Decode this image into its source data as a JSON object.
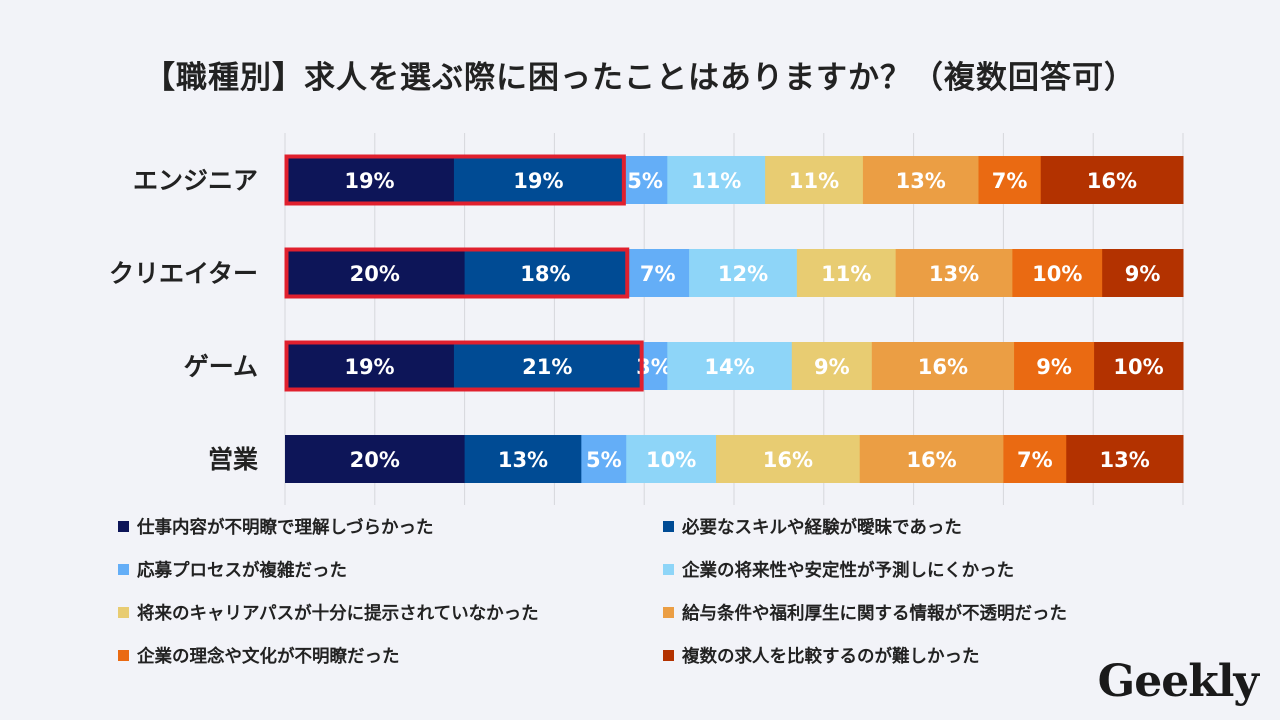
{
  "title": "【職種別】求人を選ぶ際に困ったことはありますか？（複数回答可）",
  "logo": "Geekly",
  "chart_data": {
    "type": "bar",
    "orientation": "horizontal-stacked-100",
    "title": "【職種別】求人を選ぶ際に困ったことはありますか？（複数回答可）",
    "categories": [
      "エンジニア",
      "クリエイター",
      "ゲーム",
      "営業"
    ],
    "unit": "%",
    "grid": true,
    "legend_position": "bottom",
    "highlighted_series": [
      0,
      1
    ],
    "highlighted_categories": [
      0,
      1,
      2
    ],
    "highlight_color": "#e0202e",
    "series": [
      {
        "name": "仕事内容が不明瞭で理解しづらかった",
        "color": "#0d1558",
        "values": [
          19,
          20,
          19,
          20
        ]
      },
      {
        "name": "必要なスキルや経験が曖昧であった",
        "color": "#004b94",
        "values": [
          19,
          18,
          21,
          13
        ]
      },
      {
        "name": "応募プロセスが複雑だった",
        "color": "#64aef7",
        "values": [
          5,
          7,
          3,
          5
        ]
      },
      {
        "name": "企業の将来性や安定性が予測しにくかった",
        "color": "#8ed5f8",
        "values": [
          11,
          12,
          14,
          10
        ]
      },
      {
        "name": "将来のキャリアパスが十分に提示されていなかった",
        "color": "#e8cc72",
        "values": [
          11,
          11,
          9,
          16
        ]
      },
      {
        "name": "給与条件や福利厚生に関する情報が不透明だった",
        "color": "#eb9e44",
        "values": [
          13,
          13,
          16,
          16
        ]
      },
      {
        "name": "企業の理念や文化が不明瞭だった",
        "color": "#ea6a12",
        "values": [
          7,
          10,
          9,
          7
        ]
      },
      {
        "name": "複数の求人を比較するのが難しかった",
        "color": "#b33200",
        "values": [
          16,
          9,
          10,
          13
        ]
      }
    ]
  }
}
